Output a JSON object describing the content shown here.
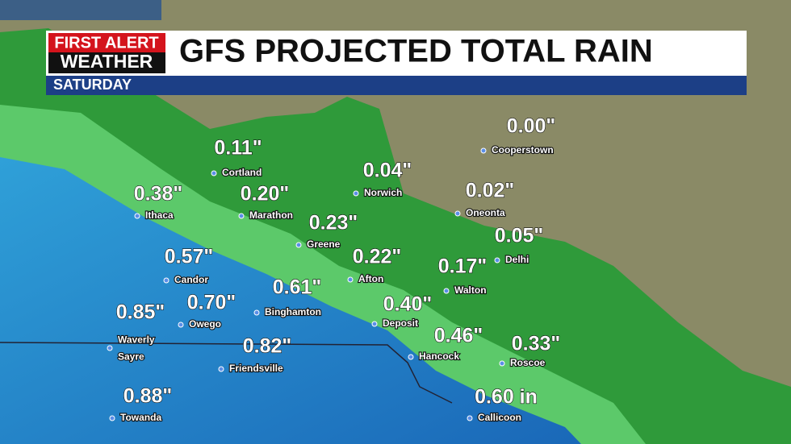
{
  "header": {
    "logo_top": "FIRST ALERT",
    "logo_bottom": "WEATHER",
    "title": "GFS PROJECTED TOTAL RAIN",
    "subtitle": "SATURDAY"
  },
  "locations": [
    {
      "amount": "0.00\"",
      "names": [
        "Cooperstown"
      ]
    },
    {
      "amount": "0.11\"",
      "names": [
        "Cortland"
      ]
    },
    {
      "amount": "0.04\"",
      "names": [
        "Norwich"
      ]
    },
    {
      "amount": "0.38\"",
      "names": [
        "Ithaca"
      ]
    },
    {
      "amount": "0.20\"",
      "names": [
        "Marathon"
      ]
    },
    {
      "amount": "0.02\"",
      "names": [
        "Oneonta"
      ]
    },
    {
      "amount": "0.23\"",
      "names": [
        "Greene"
      ]
    },
    {
      "amount": "0.05\"",
      "names": [
        "Delhi"
      ]
    },
    {
      "amount": "0.57\"",
      "names": [
        "Candor"
      ]
    },
    {
      "amount": "0.22\"",
      "names": [
        "Afton"
      ]
    },
    {
      "amount": "0.17\"",
      "names": [
        "Walton"
      ]
    },
    {
      "amount": "0.61\"",
      "names": [
        "Binghamton"
      ]
    },
    {
      "amount": "0.70\"",
      "names": [
        "Owego"
      ]
    },
    {
      "amount": "0.85\"",
      "names": [
        "Waverly",
        "Sayre"
      ]
    },
    {
      "amount": "0.40\"",
      "names": [
        "Deposit"
      ]
    },
    {
      "amount": "0.46\"",
      "names": [
        "Hancock"
      ]
    },
    {
      "amount": "0.82\"",
      "names": [
        "Friendsville"
      ]
    },
    {
      "amount": "0.33\"",
      "names": [
        "Roscoe"
      ]
    },
    {
      "amount": "0.88\"",
      "names": [
        "Towanda"
      ]
    },
    {
      "amount": "0.60 in",
      "names": [
        "Callicoon"
      ]
    }
  ]
}
